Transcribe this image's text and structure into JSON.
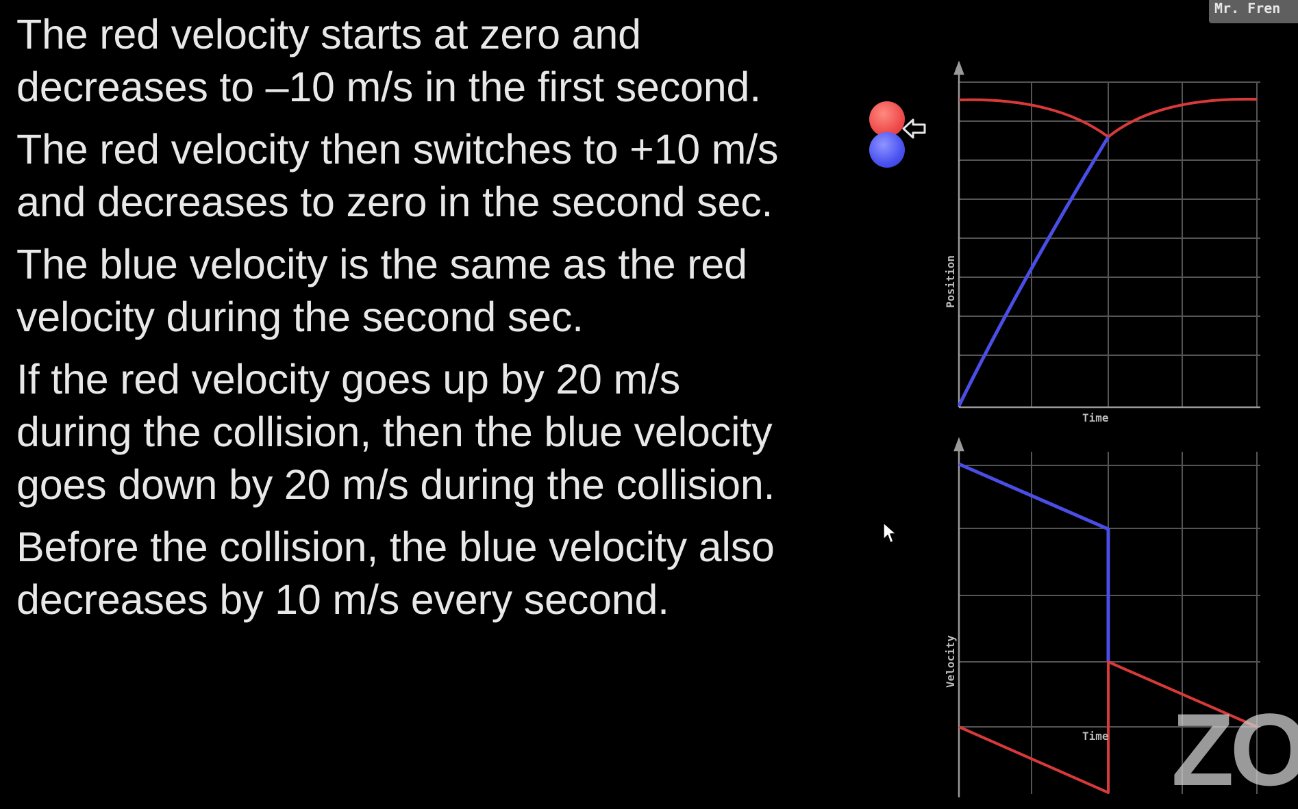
{
  "slide": {
    "paragraphs": [
      {
        "lines": [
          "The red velocity starts at zero and",
          "decreases to –10 m/s in the first second."
        ]
      },
      {
        "lines": [
          "The red velocity then switches to +10 m/s",
          "and decreases to zero in the second sec."
        ]
      },
      {
        "lines": [
          "The blue velocity is the same as the red",
          "velocity during the second sec."
        ]
      },
      {
        "lines": [
          "If the red velocity goes up by 20 m/s",
          "during the collision, then the blue velocity",
          "goes down by 20 m/s during the collision."
        ]
      },
      {
        "lines": [
          "Before the collision, the blue velocity also",
          "decreases by 10 m/s every second."
        ]
      }
    ]
  },
  "position_graph": {
    "ylabel": "Position",
    "xlabel": "Time"
  },
  "velocity_graph": {
    "ylabel": "Velocity",
    "xlabel": "Time"
  },
  "presenter": {
    "name": "Mr. Fren"
  },
  "watermark": {
    "text": "ZO"
  },
  "colors": {
    "red_ball": "#ee4b4b",
    "blue_ball": "#4a52f0",
    "red_line": "#d83a3a",
    "blue_line": "#4a4ee6",
    "grid": "#555555",
    "background": "#000000"
  },
  "icons": {
    "arrow": "left-arrow-icon",
    "cursor": "mouse-pointer-icon"
  }
}
